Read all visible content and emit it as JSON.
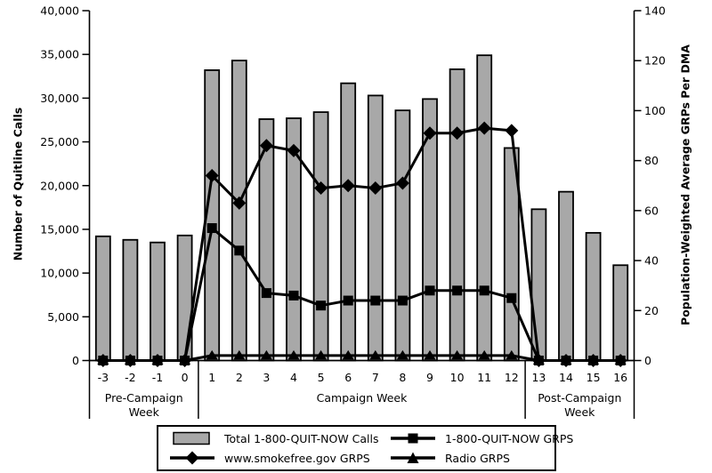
{
  "chart_data": {
    "type": "bar-line-combo",
    "categories": [
      "-3",
      "-2",
      "-1",
      "0",
      "1",
      "2",
      "3",
      "4",
      "5",
      "6",
      "7",
      "8",
      "9",
      "10",
      "11",
      "12",
      "13",
      "14",
      "15",
      "16"
    ],
    "axes": {
      "left": {
        "title": "Number of Quitline Calls",
        "max": 40000,
        "ticks": [
          {
            "v": 0,
            "label": "0"
          },
          {
            "v": 5000,
            "label": "5,000"
          },
          {
            "v": 10000,
            "label": "10,000"
          },
          {
            "v": 15000,
            "label": "15,000"
          },
          {
            "v": 20000,
            "label": "20,000"
          },
          {
            "v": 25000,
            "label": "25,000"
          },
          {
            "v": 30000,
            "label": "30,000"
          },
          {
            "v": 35000,
            "label": "35,000"
          },
          {
            "v": 40000,
            "label": "40,000"
          }
        ]
      },
      "right": {
        "title": "Population-Weighted Average GRPs Per DMA",
        "max": 140,
        "ticks": [
          {
            "v": 0,
            "label": "0"
          },
          {
            "v": 20,
            "label": "20"
          },
          {
            "v": 40,
            "label": "40"
          },
          {
            "v": 60,
            "label": "60"
          },
          {
            "v": 80,
            "label": "80"
          },
          {
            "v": 100,
            "label": "100"
          },
          {
            "v": 120,
            "label": "120"
          },
          {
            "v": 140,
            "label": "140"
          }
        ]
      },
      "x": {
        "sections": [
          {
            "lines": [
              "Pre-Campaign",
              "Week"
            ],
            "start": 0,
            "end": 4
          },
          {
            "lines": [
              "Campaign Week"
            ],
            "start": 4,
            "end": 16
          },
          {
            "lines": [
              "Post-Campaign",
              "Week"
            ],
            "start": 16,
            "end": 20
          }
        ]
      }
    },
    "series": [
      {
        "name": "Total 1-800-QUIT-NOW Calls",
        "type": "bar",
        "axis": "left",
        "color": "#a8a8a8",
        "values": [
          14200,
          13800,
          13500,
          14300,
          33200,
          34300,
          27600,
          27700,
          28400,
          31700,
          30300,
          28600,
          29900,
          33300,
          34900,
          24300,
          17300,
          19300,
          14600,
          10900
        ]
      },
      {
        "name": "1-800-QUIT-NOW GRPS",
        "type": "line",
        "marker": "square",
        "axis": "right",
        "color": "#000000",
        "values": [
          0,
          0,
          0,
          0,
          53,
          44,
          27,
          26,
          22,
          24,
          24,
          24,
          28,
          28,
          28,
          25,
          0,
          0,
          0,
          0
        ]
      },
      {
        "name": "www.smokefree.gov GRPS",
        "type": "line",
        "marker": "diamond",
        "axis": "right",
        "color": "#000000",
        "values": [
          0,
          0,
          0,
          0,
          74,
          63,
          86,
          84,
          69,
          70,
          69,
          71,
          91,
          91,
          93,
          92,
          0,
          0,
          0,
          0
        ]
      },
      {
        "name": "Radio GRPS",
        "type": "line",
        "marker": "triangle",
        "axis": "right",
        "color": "#000000",
        "values": [
          0,
          0,
          0,
          0,
          2,
          2,
          2,
          2,
          2,
          2,
          2,
          2,
          2,
          2,
          2,
          2,
          0,
          0,
          0,
          0
        ]
      }
    ]
  },
  "colors": {
    "bar_fill": "#a8a8a8",
    "line": "#000000",
    "background": "#ffffff"
  }
}
